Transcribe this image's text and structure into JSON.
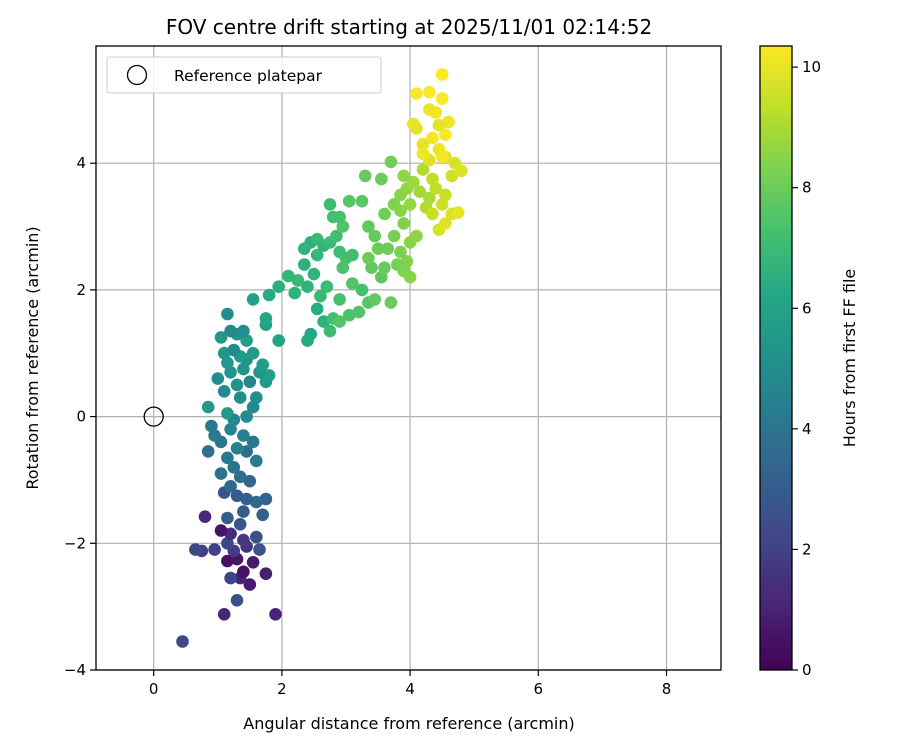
{
  "chart_data": {
    "type": "scatter",
    "title": "FOV centre drift starting at 2025/11/01 02:14:52",
    "xlabel": "Angular distance from reference (arcmin)",
    "ylabel": "Rotation from reference (arcmin)",
    "xlim": [
      -0.9,
      8.85
    ],
    "ylim": [
      -4.0,
      5.85
    ],
    "xticks": [
      0,
      2,
      4,
      6,
      8
    ],
    "xtick_labels": [
      "0",
      "2",
      "4",
      "6",
      "8"
    ],
    "yticks": [
      -4,
      -2,
      0,
      2,
      4
    ],
    "ytick_labels": [
      "−4",
      "−2",
      "0",
      "2",
      "4"
    ],
    "grid": true,
    "legend": {
      "position": "top-left",
      "entries": [
        "Reference platepar"
      ]
    },
    "reference_point": {
      "x": 0,
      "y": 0,
      "label": "Reference platepar"
    },
    "colorbar": {
      "label": "Hours from first FF file",
      "colormap": "viridis",
      "range": [
        0,
        10.35
      ],
      "ticks": [
        0,
        2,
        4,
        6,
        8,
        10
      ],
      "tick_labels": [
        "0",
        "2",
        "4",
        "6",
        "8",
        "10"
      ]
    },
    "points": [
      [
        0.45,
        -3.55,
        2.3
      ],
      [
        1.1,
        -3.12,
        1.1
      ],
      [
        1.9,
        -3.12,
        1.0
      ],
      [
        1.3,
        -2.9,
        2.5
      ],
      [
        1.5,
        -2.65,
        0.8
      ],
      [
        1.35,
        -2.55,
        1.0
      ],
      [
        1.75,
        -2.48,
        0.9
      ],
      [
        1.2,
        -2.55,
        2.1
      ],
      [
        1.4,
        -2.45,
        0.5
      ],
      [
        1.55,
        -2.3,
        0.7
      ],
      [
        1.15,
        -2.28,
        0.4
      ],
      [
        1.3,
        -2.25,
        0.6
      ],
      [
        1.65,
        -2.1,
        2.6
      ],
      [
        1.45,
        -2.05,
        1.6
      ],
      [
        1.25,
        -2.12,
        1.8
      ],
      [
        0.75,
        -2.12,
        1.9
      ],
      [
        0.65,
        -2.1,
        2.3
      ],
      [
        0.95,
        -2.1,
        2.0
      ],
      [
        1.15,
        -2.0,
        2.2
      ],
      [
        1.4,
        -1.95,
        1.7
      ],
      [
        1.6,
        -1.9,
        2.5
      ],
      [
        1.2,
        -1.85,
        1.3
      ],
      [
        1.05,
        -1.8,
        0.6
      ],
      [
        1.35,
        -1.7,
        2.8
      ],
      [
        1.15,
        -1.6,
        3.0
      ],
      [
        0.8,
        -1.58,
        1.2
      ],
      [
        1.7,
        -1.55,
        3.1
      ],
      [
        1.4,
        -1.5,
        2.9
      ],
      [
        1.75,
        -1.3,
        3.3
      ],
      [
        1.6,
        -1.35,
        3.5
      ],
      [
        1.45,
        -1.3,
        3.2
      ],
      [
        1.3,
        -1.25,
        3.0
      ],
      [
        1.1,
        -1.2,
        2.7
      ],
      [
        1.2,
        -1.1,
        3.6
      ],
      [
        1.5,
        -1.02,
        3.4
      ],
      [
        1.35,
        -0.95,
        3.8
      ],
      [
        1.05,
        -0.9,
        3.9
      ],
      [
        1.25,
        -0.8,
        4.0
      ],
      [
        1.15,
        -0.65,
        4.2
      ],
      [
        1.45,
        -0.55,
        3.7
      ],
      [
        1.6,
        -0.7,
        4.4
      ],
      [
        0.85,
        -0.55,
        3.8
      ],
      [
        1.3,
        -0.5,
        4.6
      ],
      [
        1.55,
        -0.4,
        4.1
      ],
      [
        1.05,
        -0.4,
        4.0
      ],
      [
        0.95,
        -0.3,
        4.3
      ],
      [
        1.4,
        -0.3,
        4.5
      ],
      [
        1.2,
        -0.2,
        4.7
      ],
      [
        0.9,
        -0.15,
        4.2
      ],
      [
        1.25,
        -0.05,
        4.8
      ],
      [
        1.45,
        0.0,
        4.9
      ],
      [
        1.15,
        0.05,
        5.5
      ],
      [
        0.85,
        0.15,
        5.6
      ],
      [
        1.55,
        0.15,
        4.8
      ],
      [
        1.35,
        0.3,
        5.0
      ],
      [
        1.6,
        0.3,
        5.1
      ],
      [
        1.1,
        0.4,
        4.9
      ],
      [
        1.75,
        0.55,
        5.6
      ],
      [
        1.3,
        0.5,
        5.2
      ],
      [
        1.5,
        0.55,
        4.7
      ],
      [
        1.8,
        0.65,
        5.8
      ],
      [
        1.0,
        0.6,
        5.0
      ],
      [
        1.2,
        0.7,
        5.3
      ],
      [
        1.65,
        0.7,
        5.5
      ],
      [
        1.4,
        0.75,
        5.4
      ],
      [
        1.7,
        0.82,
        5.8
      ],
      [
        1.15,
        0.85,
        5.5
      ],
      [
        1.45,
        0.9,
        5.3
      ],
      [
        1.35,
        0.95,
        5.6
      ],
      [
        1.1,
        1.0,
        5.4
      ],
      [
        1.25,
        1.05,
        4.9
      ],
      [
        1.55,
        1.0,
        5.6
      ],
      [
        1.45,
        1.2,
        5.7
      ],
      [
        1.05,
        1.25,
        5.5
      ],
      [
        1.3,
        1.3,
        5.2
      ],
      [
        1.4,
        1.35,
        5.1
      ],
      [
        1.2,
        1.35,
        4.8
      ],
      [
        1.75,
        1.45,
        5.9
      ],
      [
        1.75,
        1.55,
        6.2
      ],
      [
        1.95,
        1.2,
        6.0
      ],
      [
        1.15,
        1.62,
        5.0
      ],
      [
        1.55,
        1.85,
        5.8
      ],
      [
        1.8,
        1.92,
        6.3
      ],
      [
        1.95,
        2.05,
        6.5
      ],
      [
        2.1,
        2.22,
        6.8
      ],
      [
        2.25,
        2.15,
        6.9
      ],
      [
        2.2,
        1.95,
        6.6
      ],
      [
        2.4,
        2.05,
        6.7
      ],
      [
        2.55,
        1.7,
        6.4
      ],
      [
        2.65,
        1.5,
        6.6
      ],
      [
        2.45,
        1.3,
        6.2
      ],
      [
        2.4,
        1.2,
        6.3
      ],
      [
        2.75,
        1.35,
        7.0
      ],
      [
        2.8,
        1.55,
        7.2
      ],
      [
        2.9,
        1.85,
        7.3
      ],
      [
        2.6,
        1.9,
        6.9
      ],
      [
        2.7,
        2.05,
        7.1
      ],
      [
        2.5,
        2.25,
        6.8
      ],
      [
        2.35,
        2.4,
        6.6
      ],
      [
        2.55,
        2.55,
        6.9
      ],
      [
        2.65,
        2.7,
        6.7
      ],
      [
        2.45,
        2.75,
        6.5
      ],
      [
        2.35,
        2.65,
        6.7
      ],
      [
        2.55,
        2.8,
        6.9
      ],
      [
        2.75,
        2.75,
        7.0
      ],
      [
        2.85,
        2.85,
        7.2
      ],
      [
        2.9,
        2.6,
        7.1
      ],
      [
        3.0,
        2.5,
        7.3
      ],
      [
        3.1,
        2.55,
        7.2
      ],
      [
        2.95,
        2.35,
        7.4
      ],
      [
        3.1,
        2.1,
        7.5
      ],
      [
        3.25,
        2.0,
        7.3
      ],
      [
        3.35,
        1.8,
        7.6
      ],
      [
        3.2,
        1.65,
        7.5
      ],
      [
        3.05,
        1.6,
        7.4
      ],
      [
        2.9,
        1.5,
        7.5
      ],
      [
        3.45,
        1.85,
        7.8
      ],
      [
        3.55,
        2.2,
        7.7
      ],
      [
        3.6,
        2.35,
        7.9
      ],
      [
        3.4,
        2.35,
        7.8
      ],
      [
        3.35,
        2.5,
        8.0
      ],
      [
        3.5,
        2.65,
        8.0
      ],
      [
        3.45,
        2.85,
        7.9
      ],
      [
        3.35,
        3.0,
        7.8
      ],
      [
        3.25,
        3.4,
        7.7
      ],
      [
        3.05,
        3.4,
        7.6
      ],
      [
        2.95,
        3.0,
        7.5
      ],
      [
        2.8,
        3.15,
        7.2
      ],
      [
        2.75,
        3.35,
        7.1
      ],
      [
        2.9,
        3.15,
        7.3
      ],
      [
        3.6,
        3.2,
        8.1
      ],
      [
        3.75,
        3.35,
        8.3
      ],
      [
        3.85,
        3.5,
        8.5
      ],
      [
        3.95,
        3.6,
        8.6
      ],
      [
        4.05,
        3.7,
        8.8
      ],
      [
        4.15,
        3.55,
        8.9
      ],
      [
        4.3,
        3.45,
        9.0
      ],
      [
        4.25,
        3.3,
        9.1
      ],
      [
        4.0,
        3.35,
        8.7
      ],
      [
        3.85,
        3.25,
        8.5
      ],
      [
        3.9,
        3.05,
        8.4
      ],
      [
        3.75,
        2.85,
        8.2
      ],
      [
        3.65,
        2.65,
        8.0
      ],
      [
        3.85,
        2.6,
        8.3
      ],
      [
        4.0,
        2.75,
        8.5
      ],
      [
        4.1,
        2.85,
        8.6
      ],
      [
        3.95,
        2.45,
        8.4
      ],
      [
        3.8,
        2.4,
        8.2
      ],
      [
        3.9,
        2.3,
        8.3
      ],
      [
        4.0,
        2.2,
        8.5
      ],
      [
        3.7,
        1.8,
        8.0
      ],
      [
        3.3,
        3.8,
        7.9
      ],
      [
        3.7,
        4.02,
        8.1
      ],
      [
        3.55,
        3.75,
        8.0
      ],
      [
        3.9,
        3.8,
        8.6
      ],
      [
        4.2,
        3.9,
        9.1
      ],
      [
        4.35,
        3.75,
        9.3
      ],
      [
        4.4,
        3.6,
        9.4
      ],
      [
        4.55,
        3.5,
        9.5
      ],
      [
        4.5,
        3.35,
        9.6
      ],
      [
        4.35,
        3.2,
        9.5
      ],
      [
        4.65,
        3.2,
        9.8
      ],
      [
        4.75,
        3.22,
        10.0
      ],
      [
        4.45,
        2.95,
        9.7
      ],
      [
        4.55,
        3.05,
        9.9
      ],
      [
        4.65,
        3.8,
        9.6
      ],
      [
        4.7,
        4.0,
        9.7
      ],
      [
        4.8,
        3.88,
        9.8
      ],
      [
        4.55,
        4.1,
        9.9
      ],
      [
        4.45,
        4.22,
        10.1
      ],
      [
        4.3,
        4.05,
        9.9
      ],
      [
        4.2,
        4.3,
        10.0
      ],
      [
        4.35,
        4.4,
        10.2
      ],
      [
        4.55,
        4.45,
        10.3
      ],
      [
        4.6,
        4.65,
        10.1
      ],
      [
        4.45,
        4.6,
        10.0
      ],
      [
        4.4,
        4.8,
        10.2
      ],
      [
        4.3,
        4.85,
        10.1
      ],
      [
        4.5,
        5.02,
        10.3
      ],
      [
        4.3,
        5.12,
        10.3
      ],
      [
        4.5,
        5.4,
        10.3
      ],
      [
        4.1,
        5.1,
        10.3
      ],
      [
        4.05,
        4.62,
        10.0
      ],
      [
        4.1,
        4.55,
        9.9
      ],
      [
        4.2,
        4.15,
        10.1
      ],
      [
        4.5,
        4.1,
        10.2
      ]
    ]
  }
}
